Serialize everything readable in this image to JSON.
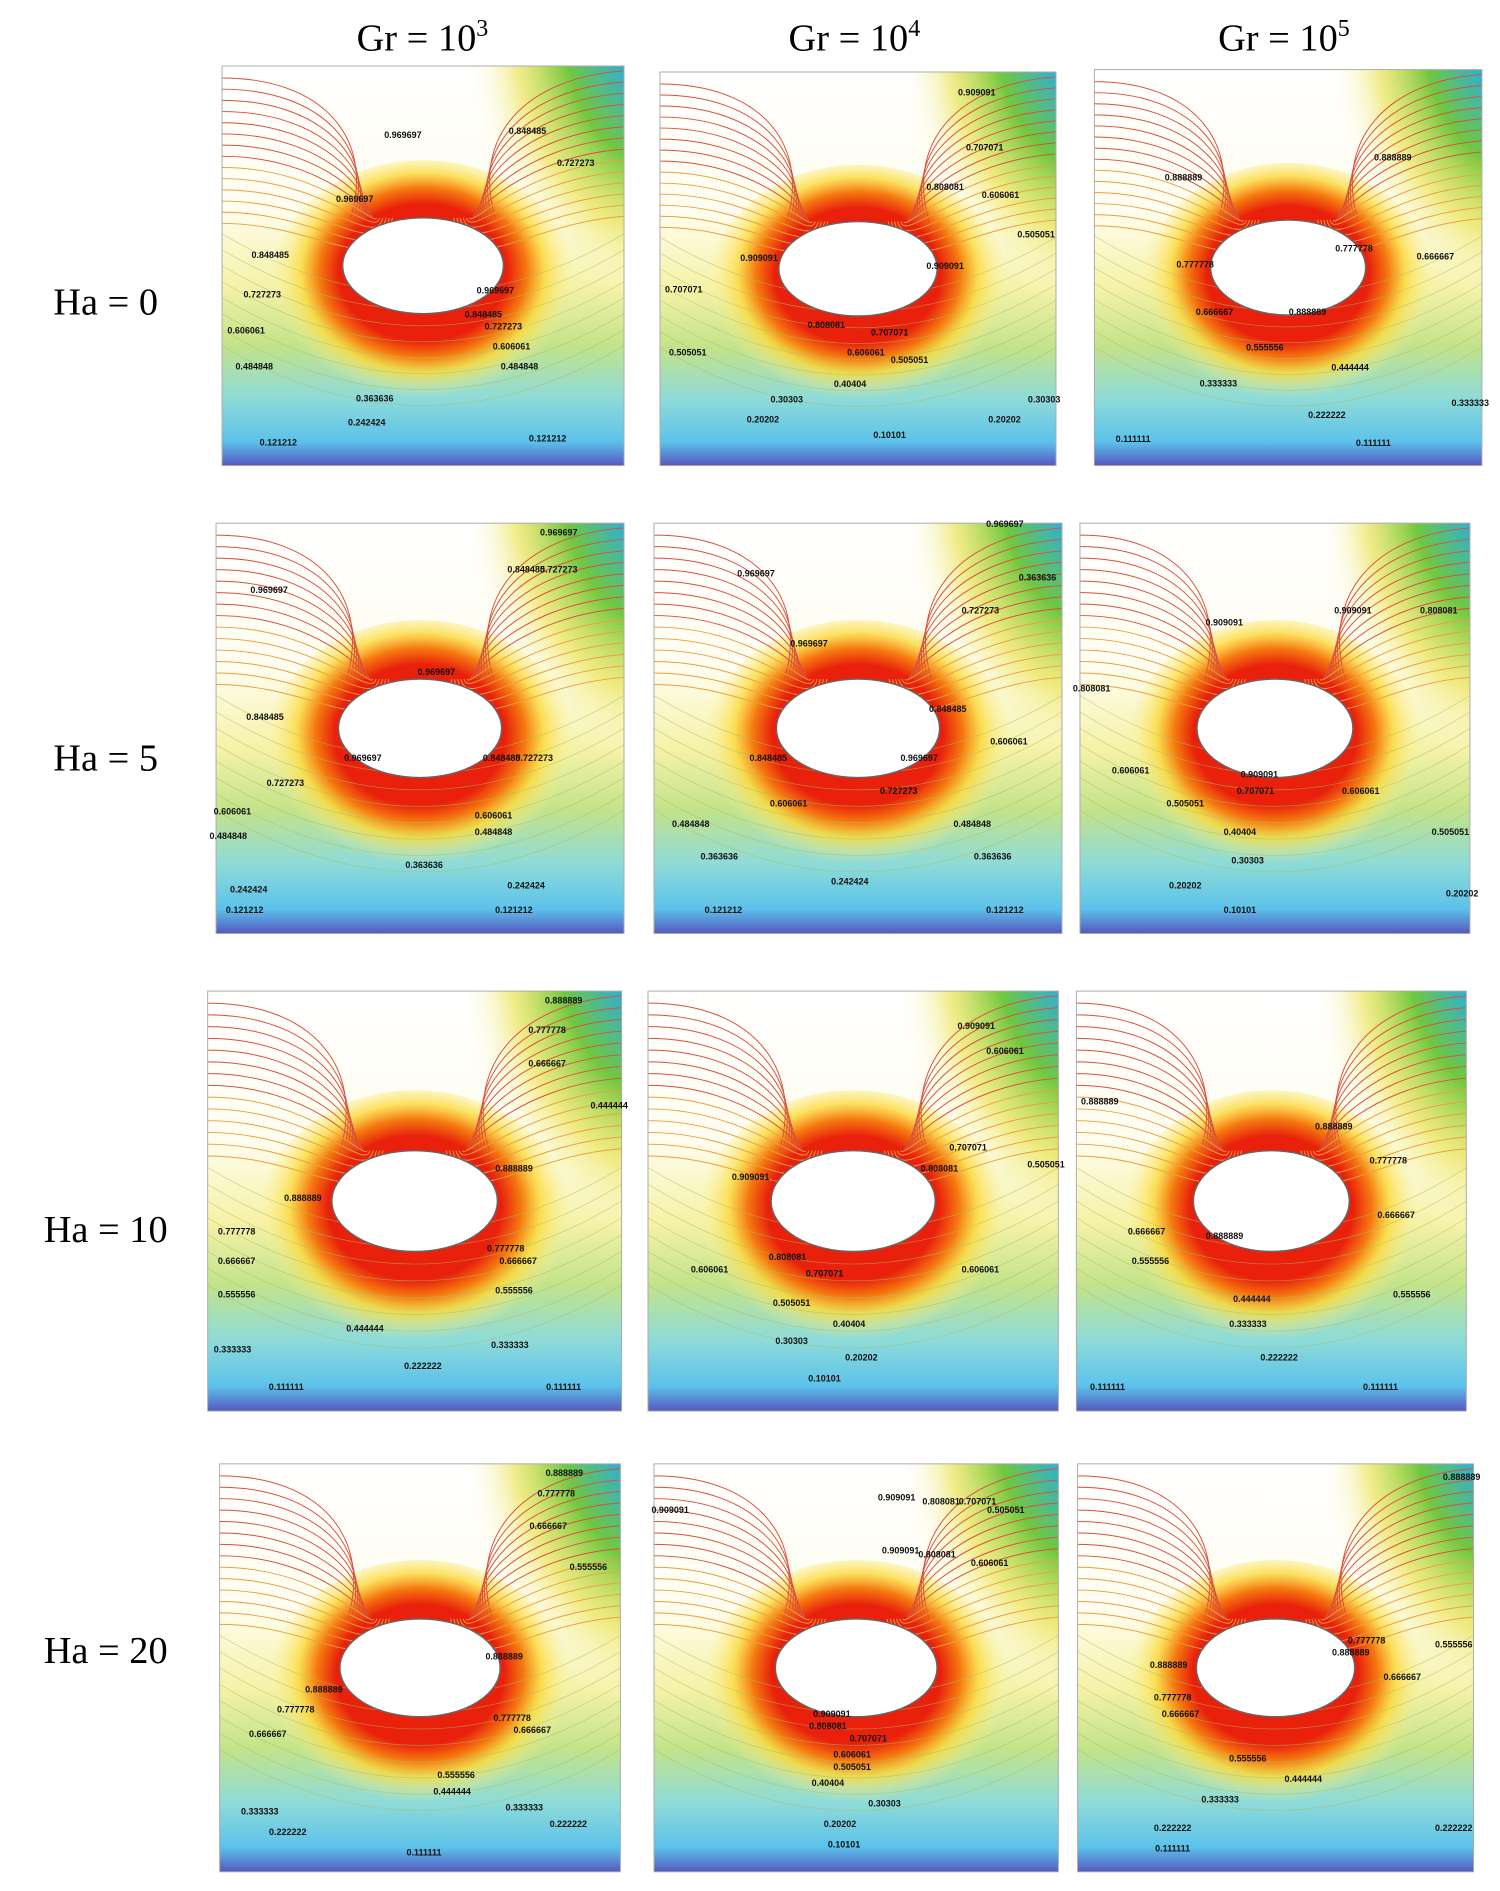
{
  "columns": [
    {
      "base": "Gr = 10",
      "exp": "3"
    },
    {
      "base": "Gr = 10",
      "exp": "4"
    },
    {
      "base": "Gr = 10",
      "exp": "5"
    }
  ],
  "rows": [
    "Ha = 0",
    "Ha = 5",
    "Ha = 10",
    "Ha = 20"
  ],
  "panels": [
    {
      "contour_labels": [
        "0.969697",
        "0.848485",
        "0.727273",
        "0.969697",
        "0.848485",
        "0.727273",
        "0.606061",
        "0.484848",
        "0.969697",
        "0.848485",
        "0.727273",
        "0.606061",
        "0.484848",
        "0.363636",
        "0.242424",
        "0.121212",
        "0.121212"
      ]
    },
    {
      "contour_labels": [
        "0.909091",
        "0.707071",
        "0.808081",
        "0.606061",
        "0.505051",
        "0.909091",
        "0.909091",
        "0.707071",
        "0.808081",
        "0.707071",
        "0.606061",
        "0.505051",
        "0.505051",
        "0.40404",
        "0.30303",
        "0.20202",
        "0.10101",
        "0.20202",
        "0.30303"
      ]
    },
    {
      "contour_labels": [
        "0.888889",
        "0.888889",
        "0.777778",
        "0.777778",
        "0.666667",
        "0.666667",
        "0.888889",
        "0.555556",
        "0.444444",
        "0.333333",
        "0.222222",
        "0.333333",
        "0.111111",
        "0.111111"
      ]
    },
    {
      "contour_labels": [
        "0.969697",
        "0.969697",
        "0.848485",
        "0.727273",
        "0.969697",
        "0.848485",
        "0.969697",
        "0.848485",
        "0.727273",
        "0.727273",
        "0.606061",
        "0.484848",
        "0.606061",
        "0.484848",
        "0.363636",
        "0.242424",
        "0.242424",
        "0.121212",
        "0.121212"
      ]
    },
    {
      "contour_labels": [
        "0.969697",
        "0.969697",
        "0.727273",
        "0.363636",
        "0.969697",
        "0.848485",
        "0.606061",
        "0.848485",
        "0.969697",
        "0.727273",
        "0.606061",
        "0.484848",
        "0.484848",
        "0.363636",
        "0.363636",
        "0.242424",
        "0.121212",
        "0.121212"
      ]
    },
    {
      "contour_labels": [
        "0.909091",
        "0.909091",
        "0.808081",
        "0.808081",
        "0.606061",
        "0.909091",
        "0.707071",
        "0.606061",
        "0.505051",
        "0.505051",
        "0.40404",
        "0.30303",
        "0.20202",
        "0.10101",
        "0.20202"
      ]
    },
    {
      "contour_labels": [
        "0.888889",
        "0.777778",
        "0.666667",
        "0.444444",
        "0.888889",
        "0.888889",
        "0.777778",
        "0.777778",
        "0.666667",
        "0.666667",
        "0.555556",
        "0.555556",
        "0.444444",
        "0.333333",
        "0.333333",
        "0.222222",
        "0.111111",
        "0.111111"
      ]
    },
    {
      "contour_labels": [
        "0.909091",
        "0.606061",
        "0.808081",
        "0.707071",
        "0.909091",
        "0.505051",
        "0.808081",
        "0.707071",
        "0.606061",
        "0.606061",
        "0.505051",
        "0.40404",
        "0.30303",
        "0.20202",
        "0.10101"
      ]
    },
    {
      "contour_labels": [
        "0.888889",
        "0.888889",
        "0.777778",
        "0.666667",
        "0.666667",
        "0.555556",
        "0.888889",
        "0.444444",
        "0.333333",
        "0.555556",
        "0.222222",
        "0.111111",
        "0.111111"
      ]
    },
    {
      "contour_labels": [
        "0.888889",
        "0.777778",
        "0.666667",
        "0.555556",
        "0.888889",
        "0.888889",
        "0.777778",
        "0.777778",
        "0.666667",
        "0.666667",
        "0.555556",
        "0.444444",
        "0.333333",
        "0.333333",
        "0.222222",
        "0.222222",
        "0.111111"
      ]
    },
    {
      "contour_labels": [
        "0.909091",
        "0.808081",
        "0.707071",
        "0.505051",
        "0.909091",
        "0.808081",
        "0.606061",
        "0.909091",
        "0.909091",
        "0.808081",
        "0.707071",
        "0.606061",
        "0.505051",
        "0.40404",
        "0.30303",
        "0.20202",
        "0.10101"
      ]
    },
    {
      "contour_labels": [
        "0.888889",
        "0.777778",
        "0.666667",
        "0.555556",
        "0.888889",
        "0.888889",
        "0.777778",
        "0.666667",
        "0.555556",
        "0.444444",
        "0.333333",
        "0.222222",
        "0.222222",
        "0.111111"
      ]
    }
  ]
}
